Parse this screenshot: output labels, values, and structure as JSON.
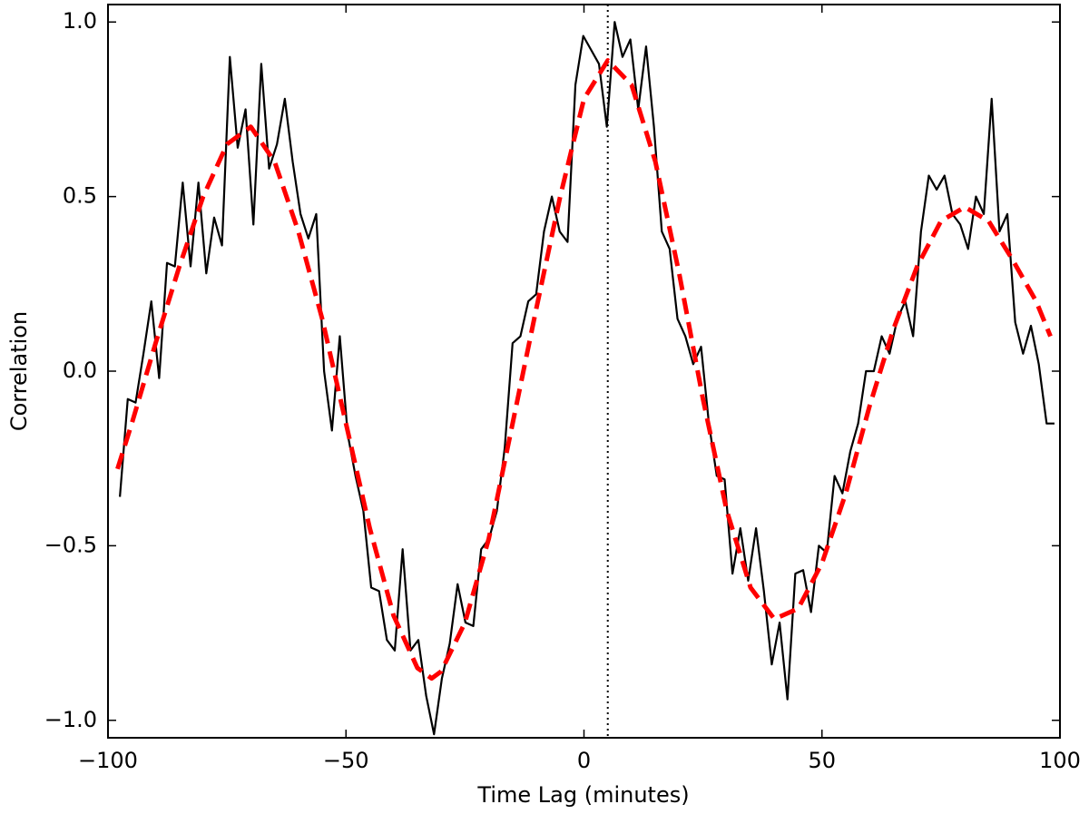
{
  "chart_data": {
    "type": "line",
    "xlabel": "Time Lag (minutes)",
    "ylabel": "Correlation",
    "xlim": [
      -100,
      100
    ],
    "ylim": [
      -1.05,
      1.05
    ],
    "xticks": [
      {
        "value": -100,
        "label": "−100"
      },
      {
        "value": -50,
        "label": "−50"
      },
      0,
      50,
      100
    ],
    "yticks": [
      {
        "value": -1.0,
        "label": "−1.0"
      },
      {
        "value": -0.5,
        "label": "−0.5"
      },
      {
        "value": 0.0,
        "label": "0.0"
      },
      {
        "value": 0.5,
        "label": "0.5"
      },
      {
        "value": 1.0,
        "label": "1.0"
      }
    ],
    "grid": false,
    "vlines": [
      5
    ],
    "series": [
      {
        "style": "solid",
        "color": "#000000",
        "x": [
          -97.5,
          -95.85,
          -94.2,
          -92.55,
          -90.9,
          -89.25,
          -87.6,
          -85.95,
          -84.3,
          -82.65,
          -81,
          -79.35,
          -77.7,
          -76.05,
          -74.4,
          -72.75,
          -71.1,
          -69.45,
          -67.8,
          -66.15,
          -64.5,
          -62.85,
          -61.2,
          -59.55,
          -57.9,
          -56.25,
          -54.6,
          -52.95,
          -51.3,
          -49.65,
          -48,
          -46.35,
          -44.7,
          -43.05,
          -41.4,
          -39.75,
          -38.1,
          -36.45,
          -34.8,
          -33.15,
          -31.5,
          -29.85,
          -28.2,
          -26.55,
          -24.9,
          -23.25,
          -21.6,
          -19.95,
          -18.3,
          -16.65,
          -15,
          -13.35,
          -11.7,
          -10.05,
          -8.4,
          -6.75,
          -5.1,
          -3.45,
          -1.8,
          -0.15,
          1.5,
          3.15,
          4.8,
          6.45,
          8.1,
          9.75,
          11.4,
          13.05,
          14.7,
          16.35,
          18,
          19.65,
          21.3,
          22.95,
          24.6,
          26.25,
          27.9,
          29.55,
          31.2,
          32.85,
          34.5,
          36.15,
          37.8,
          39.45,
          41.1,
          42.75,
          44.4,
          46.05,
          47.7,
          49.35,
          51,
          52.65,
          54.3,
          55.95,
          57.6,
          59.25,
          60.9,
          62.55,
          64.2,
          65.85,
          67.5,
          69.15,
          70.8,
          72.45,
          74.1,
          75.75,
          77.4,
          79.05,
          80.7,
          82.35,
          84,
          85.65,
          87.3,
          88.95,
          90.6,
          92.25,
          93.9,
          95.55,
          97.2,
          98.85
        ],
        "values": [
          -0.36,
          -0.08,
          -0.09,
          0.05,
          0.2,
          -0.02,
          0.31,
          0.3,
          0.54,
          0.3,
          0.54,
          0.28,
          0.44,
          0.36,
          0.9,
          0.64,
          0.75,
          0.42,
          0.88,
          0.58,
          0.65,
          0.78,
          0.6,
          0.45,
          0.38,
          0.45,
          0.0,
          -0.17,
          0.1,
          -0.18,
          -0.3,
          -0.4,
          -0.62,
          -0.63,
          -0.77,
          -0.8,
          -0.51,
          -0.8,
          -0.77,
          -0.93,
          -1.04,
          -0.88,
          -0.78,
          -0.61,
          -0.72,
          -0.73,
          -0.51,
          -0.48,
          -0.4,
          -0.22,
          0.08,
          0.1,
          0.2,
          0.22,
          0.4,
          0.5,
          0.4,
          0.37,
          0.82,
          0.96,
          0.92,
          0.88,
          0.7,
          1.0,
          0.9,
          0.95,
          0.75,
          0.93,
          0.7,
          0.4,
          0.35,
          0.15,
          0.1,
          0.02,
          0.07,
          -0.15,
          -0.3,
          -0.31,
          -0.58,
          -0.45,
          -0.6,
          -0.45,
          -0.63,
          -0.84,
          -0.72,
          -0.94,
          -0.58,
          -0.57,
          -0.69,
          -0.5,
          -0.52,
          -0.3,
          -0.35,
          -0.23,
          -0.15,
          0.0,
          0.0,
          0.1,
          0.05,
          0.15,
          0.2,
          0.1,
          0.4,
          0.56,
          0.52,
          0.56,
          0.45,
          0.42,
          0.35,
          0.5,
          0.45,
          0.78,
          0.4,
          0.45,
          0.14,
          0.05,
          0.13,
          0.02,
          -0.15,
          -0.15
        ]
      },
      {
        "style": "dashed",
        "color": "#ff0000",
        "x": [
          -98,
          -95,
          -90,
          -85,
          -80,
          -75,
          -70,
          -65,
          -60,
          -55,
          -50,
          -45,
          -40,
          -35,
          -32,
          -30,
          -25,
          -20,
          -15,
          -10,
          -5,
          0,
          5,
          10,
          15,
          20,
          25,
          30,
          35,
          40,
          45,
          50,
          55,
          60,
          65,
          70,
          75,
          80,
          85,
          90,
          95,
          98
        ],
        "values": [
          -0.28,
          -0.15,
          0.08,
          0.3,
          0.5,
          0.65,
          0.7,
          0.6,
          0.4,
          0.15,
          -0.15,
          -0.45,
          -0.7,
          -0.85,
          -0.88,
          -0.86,
          -0.72,
          -0.48,
          -0.15,
          0.18,
          0.5,
          0.78,
          0.89,
          0.82,
          0.6,
          0.28,
          -0.08,
          -0.4,
          -0.62,
          -0.71,
          -0.68,
          -0.55,
          -0.35,
          -0.1,
          0.12,
          0.3,
          0.43,
          0.47,
          0.43,
          0.32,
          0.2,
          0.1
        ]
      }
    ]
  }
}
